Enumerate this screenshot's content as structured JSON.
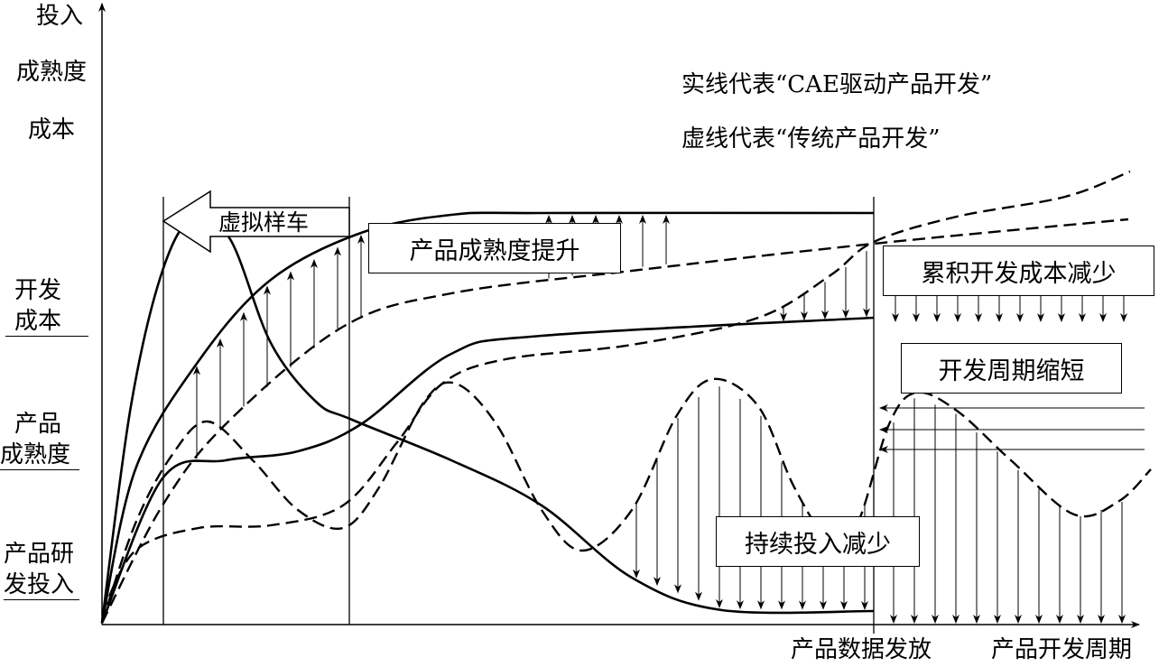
{
  "axes": {
    "y_labels": [
      "投入",
      "成熟度",
      "成本"
    ],
    "x_label_release": "产品数据发放",
    "x_label_period": "产品开发周期"
  },
  "legend": {
    "solid": "实线代表“CAE驱动产品开发”",
    "dashed": "虚线代表“传统产品开发”"
  },
  "row_labels": {
    "dev_cost": [
      "开发",
      "成本"
    ],
    "maturity": [
      "产品",
      "成熟度"
    ],
    "investment": [
      "产品研",
      "发投入"
    ]
  },
  "callouts": {
    "virtual_prototype": "虚拟样车",
    "maturity_up": "产品成熟度提升",
    "cost_down": "累积开发成本减少",
    "cycle_short": "开发周期缩短",
    "invest_down": "持续投入减少"
  },
  "line_color": "#000000"
}
